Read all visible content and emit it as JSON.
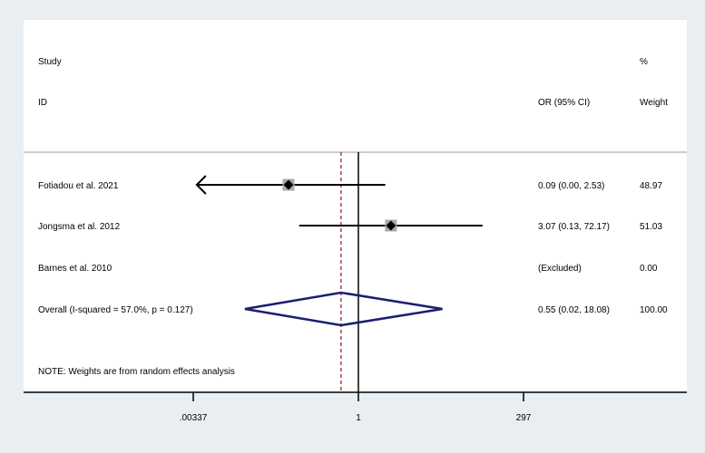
{
  "chart_data": {
    "type": "forest",
    "header": {
      "study_label_line1": "Study",
      "study_label_line2": "ID",
      "effect_label": "OR (95% CI)",
      "weight_label_line1": "%",
      "weight_label_line2": "Weight"
    },
    "x_axis": {
      "scale": "log",
      "ticks": [
        {
          "value": 0.00337,
          "label": ".00337"
        },
        {
          "value": 1,
          "label": "1"
        },
        {
          "value": 297,
          "label": "297"
        }
      ],
      "range": [
        0.00337,
        297
      ]
    },
    "studies": [
      {
        "name": "Fotiadou et al. 2021",
        "or": 0.09,
        "lo": 0.0,
        "hi": 2.53,
        "ci_text": "0.09 (0.00, 2.53)",
        "weight": "48.97",
        "arrow_left": true,
        "lo_plotted": 0.0038
      },
      {
        "name": "Jongsma et al. 2012",
        "or": 3.07,
        "lo": 0.13,
        "hi": 72.17,
        "ci_text": "3.07 (0.13, 72.17)",
        "weight": "51.03",
        "arrow_left": false
      },
      {
        "name": "Barnes et al. 2010",
        "or": null,
        "lo": null,
        "hi": null,
        "ci_text": "(Excluded)",
        "weight": "0.00",
        "arrow_left": false
      }
    ],
    "overall": {
      "label": "Overall  (I-squared = 57.0%, p = 0.127)",
      "or": 0.55,
      "lo": 0.02,
      "hi": 18.08,
      "ci_text": "0.55 (0.02, 18.08)",
      "weight": "100.00"
    },
    "note": "NOTE: Weights are from random effects analysis",
    "null_line_value": 1,
    "pooled_line_value": 0.55,
    "colors": {
      "background": "#e9eef3",
      "plot_area": "#ffffff",
      "diamond": "#1a1f6e",
      "pooled_line": "#8b1a1a",
      "weight_box": "#a9a9a9",
      "lines": "#000000"
    }
  }
}
